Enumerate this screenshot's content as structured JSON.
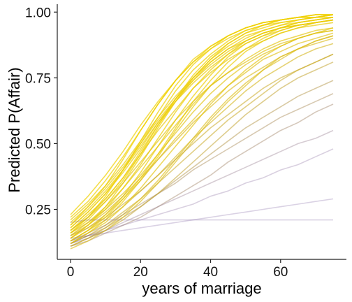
{
  "chart_data": {
    "type": "line",
    "title": "",
    "xlabel": "years of marriage",
    "ylabel": "Predicted P(Affair)",
    "xlim": [
      -3.8,
      78.8
    ],
    "ylim": [
      0.06,
      1.03
    ],
    "x_ticks": [
      {
        "value": 0,
        "label": "0"
      },
      {
        "value": 20,
        "label": "20"
      },
      {
        "value": 40,
        "label": "40"
      },
      {
        "value": 60,
        "label": "60"
      }
    ],
    "y_ticks": [
      {
        "value": 0.25,
        "label": "0.25"
      },
      {
        "value": 0.5,
        "label": "0.50"
      },
      {
        "value": 0.75,
        "label": "0.75"
      },
      {
        "value": 1.0,
        "label": "1.00"
      }
    ],
    "x": [
      0,
      5,
      10,
      15,
      20,
      25,
      30,
      35,
      40,
      45,
      50,
      55,
      60,
      65,
      70,
      75
    ],
    "grid": false,
    "legend": "none",
    "colors": {
      "low": "#6a4c93",
      "high": "#f0d000"
    },
    "series": [
      {
        "values": [
          0.16,
          0.22,
          0.3,
          0.4,
          0.51,
          0.62,
          0.72,
          0.8,
          0.86,
          0.91,
          0.94,
          0.96,
          0.97,
          0.98,
          0.99,
          0.99
        ]
      },
      {
        "values": [
          0.18,
          0.24,
          0.31,
          0.39,
          0.48,
          0.58,
          0.67,
          0.75,
          0.82,
          0.87,
          0.91,
          0.93,
          0.95,
          0.97,
          0.98,
          0.98
        ]
      },
      {
        "values": [
          0.14,
          0.19,
          0.26,
          0.35,
          0.45,
          0.56,
          0.66,
          0.75,
          0.82,
          0.88,
          0.92,
          0.94,
          0.96,
          0.97,
          0.98,
          0.99
        ]
      },
      {
        "values": [
          0.2,
          0.26,
          0.33,
          0.41,
          0.5,
          0.59,
          0.67,
          0.74,
          0.8,
          0.85,
          0.89,
          0.92,
          0.94,
          0.95,
          0.96,
          0.97
        ]
      },
      {
        "values": [
          0.13,
          0.17,
          0.23,
          0.3,
          0.39,
          0.49,
          0.59,
          0.68,
          0.76,
          0.83,
          0.88,
          0.91,
          0.94,
          0.96,
          0.97,
          0.98
        ]
      },
      {
        "values": [
          0.17,
          0.23,
          0.29,
          0.37,
          0.46,
          0.55,
          0.63,
          0.71,
          0.77,
          0.82,
          0.86,
          0.89,
          0.92,
          0.94,
          0.95,
          0.96
        ]
      },
      {
        "values": [
          0.12,
          0.16,
          0.21,
          0.28,
          0.36,
          0.45,
          0.55,
          0.64,
          0.72,
          0.79,
          0.85,
          0.89,
          0.92,
          0.94,
          0.96,
          0.97
        ]
      },
      {
        "values": [
          0.22,
          0.28,
          0.36,
          0.45,
          0.55,
          0.65,
          0.74,
          0.81,
          0.87,
          0.91,
          0.94,
          0.96,
          0.97,
          0.98,
          0.99,
          0.99
        ]
      },
      {
        "values": [
          0.15,
          0.2,
          0.26,
          0.33,
          0.41,
          0.49,
          0.57,
          0.65,
          0.72,
          0.77,
          0.82,
          0.86,
          0.89,
          0.91,
          0.93,
          0.94
        ]
      },
      {
        "values": [
          0.14,
          0.18,
          0.23,
          0.29,
          0.36,
          0.44,
          0.52,
          0.59,
          0.66,
          0.72,
          0.77,
          0.82,
          0.85,
          0.88,
          0.9,
          0.92
        ]
      },
      {
        "values": [
          0.13,
          0.17,
          0.21,
          0.26,
          0.32,
          0.38,
          0.45,
          0.52,
          0.58,
          0.64,
          0.7,
          0.75,
          0.79,
          0.83,
          0.86,
          0.88
        ]
      },
      {
        "values": [
          0.16,
          0.21,
          0.28,
          0.36,
          0.46,
          0.57,
          0.67,
          0.76,
          0.83,
          0.88,
          0.92,
          0.95,
          0.96,
          0.97,
          0.98,
          0.99
        ]
      },
      {
        "values": [
          0.12,
          0.15,
          0.19,
          0.24,
          0.29,
          0.35,
          0.41,
          0.47,
          0.53,
          0.59,
          0.64,
          0.69,
          0.74,
          0.78,
          0.81,
          0.84
        ]
      },
      {
        "values": [
          0.19,
          0.25,
          0.32,
          0.4,
          0.49,
          0.58,
          0.66,
          0.73,
          0.79,
          0.84,
          0.88,
          0.91,
          0.93,
          0.95,
          0.96,
          0.97
        ]
      },
      {
        "values": [
          0.11,
          0.14,
          0.18,
          0.23,
          0.29,
          0.36,
          0.44,
          0.52,
          0.6,
          0.67,
          0.73,
          0.78,
          0.83,
          0.86,
          0.89,
          0.91
        ]
      },
      {
        "values": [
          0.15,
          0.19,
          0.24,
          0.3,
          0.37,
          0.44,
          0.51,
          0.58,
          0.64,
          0.7,
          0.75,
          0.79,
          0.83,
          0.86,
          0.88,
          0.9
        ]
      },
      {
        "values": [
          0.12,
          0.15,
          0.18,
          0.22,
          0.26,
          0.31,
          0.36,
          0.41,
          0.46,
          0.51,
          0.56,
          0.6,
          0.64,
          0.68,
          0.71,
          0.74
        ]
      },
      {
        "values": [
          0.17,
          0.22,
          0.29,
          0.37,
          0.47,
          0.57,
          0.66,
          0.74,
          0.81,
          0.86,
          0.9,
          0.93,
          0.95,
          0.96,
          0.97,
          0.98
        ]
      },
      {
        "values": [
          0.13,
          0.16,
          0.19,
          0.23,
          0.27,
          0.31,
          0.35,
          0.4,
          0.44,
          0.48,
          0.52,
          0.56,
          0.6,
          0.63,
          0.66,
          0.69
        ]
      },
      {
        "values": [
          0.14,
          0.19,
          0.25,
          0.33,
          0.42,
          0.52,
          0.62,
          0.71,
          0.78,
          0.84,
          0.89,
          0.92,
          0.94,
          0.96,
          0.97,
          0.98
        ]
      },
      {
        "values": [
          0.11,
          0.13,
          0.16,
          0.19,
          0.22,
          0.26,
          0.3,
          0.34,
          0.38,
          0.43,
          0.47,
          0.51,
          0.55,
          0.58,
          0.62,
          0.65
        ]
      },
      {
        "values": [
          0.21,
          0.27,
          0.34,
          0.42,
          0.51,
          0.6,
          0.68,
          0.75,
          0.81,
          0.86,
          0.89,
          0.92,
          0.94,
          0.95,
          0.96,
          0.97
        ]
      },
      {
        "values": [
          0.12,
          0.14,
          0.17,
          0.2,
          0.23,
          0.26,
          0.29,
          0.32,
          0.35,
          0.38,
          0.41,
          0.44,
          0.47,
          0.5,
          0.52,
          0.55
        ]
      },
      {
        "values": [
          0.16,
          0.2,
          0.25,
          0.31,
          0.38,
          0.46,
          0.54,
          0.62,
          0.69,
          0.75,
          0.8,
          0.84,
          0.87,
          0.9,
          0.92,
          0.93
        ]
      },
      {
        "values": [
          0.13,
          0.15,
          0.17,
          0.19,
          0.21,
          0.23,
          0.25,
          0.27,
          0.3,
          0.32,
          0.35,
          0.37,
          0.4,
          0.42,
          0.45,
          0.48
        ]
      },
      {
        "values": [
          0.1,
          0.13,
          0.17,
          0.22,
          0.28,
          0.35,
          0.43,
          0.51,
          0.59,
          0.66,
          0.72,
          0.78,
          0.82,
          0.86,
          0.89,
          0.91
        ]
      },
      {
        "values": [
          0.14,
          0.15,
          0.16,
          0.17,
          0.18,
          0.19,
          0.2,
          0.21,
          0.22,
          0.23,
          0.24,
          0.25,
          0.26,
          0.27,
          0.28,
          0.29
        ]
      },
      {
        "values": [
          0.18,
          0.24,
          0.31,
          0.4,
          0.5,
          0.6,
          0.7,
          0.78,
          0.84,
          0.89,
          0.93,
          0.95,
          0.97,
          0.98,
          0.98,
          0.99
        ]
      },
      {
        "values": [
          0.15,
          0.18,
          0.22,
          0.27,
          0.32,
          0.38,
          0.44,
          0.5,
          0.56,
          0.61,
          0.66,
          0.71,
          0.75,
          0.78,
          0.81,
          0.84
        ]
      },
      {
        "values": [
          0.2,
          0.21,
          0.21,
          0.21,
          0.21,
          0.21,
          0.21,
          0.21,
          0.21,
          0.21,
          0.21,
          0.21,
          0.21,
          0.21,
          0.21,
          0.21
        ]
      },
      {
        "values": [
          0.23,
          0.3,
          0.38,
          0.47,
          0.57,
          0.66,
          0.74,
          0.81,
          0.86,
          0.9,
          0.93,
          0.95,
          0.97,
          0.98,
          0.98,
          0.99
        ]
      },
      {
        "values": [
          0.12,
          0.16,
          0.2,
          0.26,
          0.33,
          0.41,
          0.49,
          0.57,
          0.65,
          0.72,
          0.78,
          0.83,
          0.87,
          0.9,
          0.92,
          0.94
        ]
      },
      {
        "values": [
          0.17,
          0.22,
          0.28,
          0.35,
          0.43,
          0.51,
          0.59,
          0.66,
          0.72,
          0.77,
          0.81,
          0.85,
          0.88,
          0.9,
          0.92,
          0.93
        ]
      },
      {
        "values": [
          0.13,
          0.17,
          0.22,
          0.29,
          0.37,
          0.46,
          0.56,
          0.66,
          0.74,
          0.81,
          0.86,
          0.9,
          0.93,
          0.95,
          0.96,
          0.97
        ]
      },
      {
        "values": [
          0.11,
          0.14,
          0.17,
          0.21,
          0.26,
          0.31,
          0.37,
          0.43,
          0.49,
          0.55,
          0.61,
          0.66,
          0.71,
          0.75,
          0.78,
          0.81
        ]
      },
      {
        "values": [
          0.19,
          0.26,
          0.34,
          0.44,
          0.55,
          0.65,
          0.74,
          0.82,
          0.87,
          0.91,
          0.94,
          0.96,
          0.97,
          0.98,
          0.99,
          0.99
        ]
      }
    ]
  }
}
